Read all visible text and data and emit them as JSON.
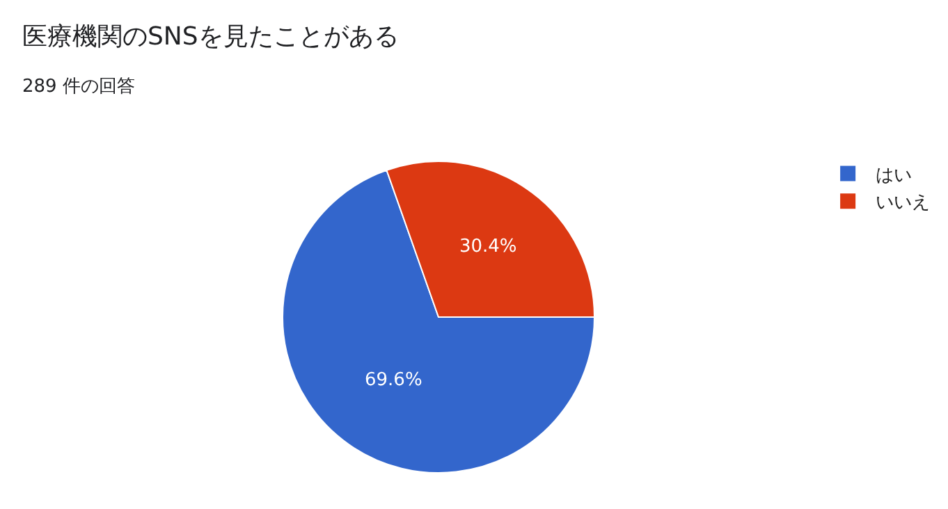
{
  "chart_data": {
    "type": "pie",
    "title": "医療機関のSNSを見たことがある",
    "subtitle": "289 件の回答",
    "categories": [
      "はい",
      "いいえ"
    ],
    "values": [
      69.6,
      30.4
    ],
    "colors": [
      "#3366cc",
      "#dc3912"
    ],
    "value_labels": [
      "69.6%",
      "30.4%"
    ],
    "legend": "top right"
  }
}
